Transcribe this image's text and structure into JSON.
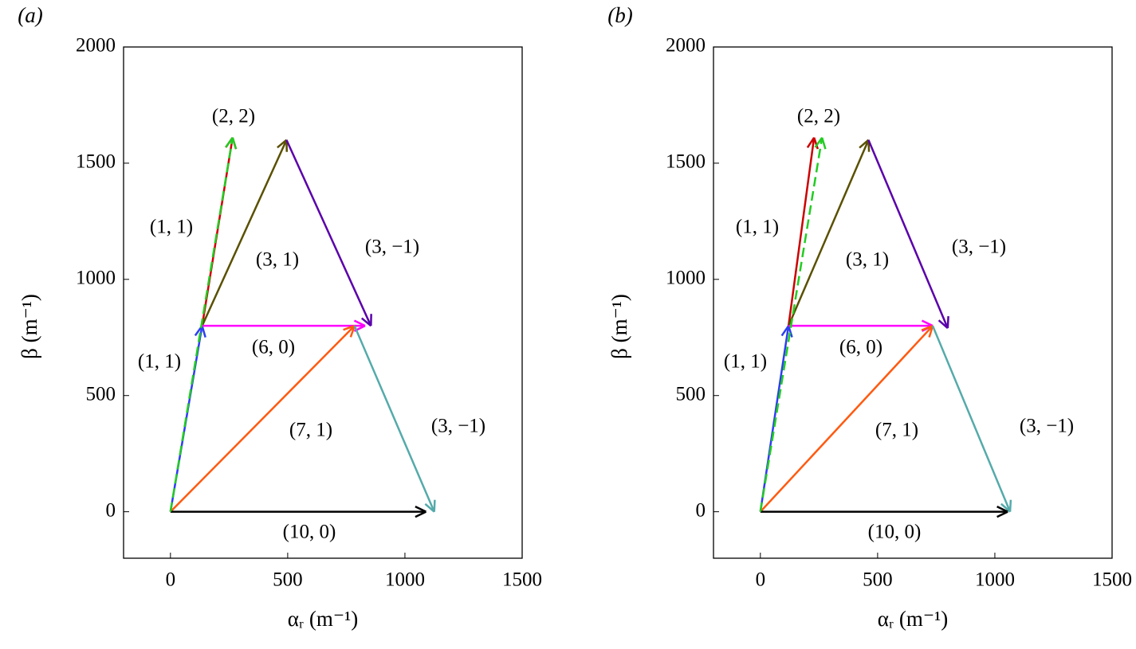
{
  "chart_data": [
    {
      "type": "vector",
      "panel_label": "(a)",
      "xlabel": "αᵣ (m⁻¹)",
      "ylabel": "β (m⁻¹)",
      "xlim": [
        -200,
        1500
      ],
      "ylim": [
        -200,
        2000
      ],
      "xticks": [
        0,
        500,
        1000,
        1500
      ],
      "yticks": [
        0,
        500,
        1000,
        1500,
        2000
      ],
      "series": [
        {
          "name": "(1, 1)",
          "color": "#2b3ff0",
          "start": [
            0,
            0
          ],
          "end": [
            135,
            800
          ],
          "dashed": false
        },
        {
          "name": "(1, 1)",
          "color": "#cc0000",
          "start": [
            135,
            800
          ],
          "end": [
            265,
            1610
          ],
          "dashed": false
        },
        {
          "name": "(3, 1)",
          "color": "#5a5000",
          "start": [
            135,
            800
          ],
          "end": [
            495,
            1600
          ],
          "dashed": false
        },
        {
          "name": "(3, −1)",
          "color": "#5a00aa",
          "start": [
            495,
            1600
          ],
          "end": [
            855,
            800
          ],
          "dashed": false
        },
        {
          "name": "(6, 0)",
          "color": "#ff00ff",
          "start": [
            135,
            800
          ],
          "end": [
            830,
            800
          ],
          "dashed": false
        },
        {
          "name": "(7, 1)",
          "color": "#ff5a10",
          "start": [
            0,
            0
          ],
          "end": [
            785,
            800
          ],
          "dashed": false
        },
        {
          "name": "(3, −1)",
          "color": "#55aaaa",
          "start": [
            785,
            800
          ],
          "end": [
            1125,
            0
          ],
          "dashed": false
        },
        {
          "name": "(10, 0)",
          "color": "#000000",
          "start": [
            0,
            0
          ],
          "end": [
            1090,
            0
          ],
          "dashed": false
        },
        {
          "name": "(2, 2)",
          "color": "#22cc22",
          "start": [
            0,
            0
          ],
          "end": [
            265,
            1610
          ],
          "dashed": true
        }
      ]
    },
    {
      "type": "vector",
      "panel_label": "(b)",
      "xlabel": "αᵣ (m⁻¹)",
      "ylabel": "β (m⁻¹)",
      "xlim": [
        -200,
        1500
      ],
      "ylim": [
        -200,
        2000
      ],
      "xticks": [
        0,
        500,
        1000,
        1500
      ],
      "yticks": [
        0,
        500,
        1000,
        1500,
        2000
      ],
      "series": [
        {
          "name": "(1, 1)",
          "color": "#2b3ff0",
          "start": [
            0,
            0
          ],
          "end": [
            120,
            800
          ],
          "dashed": false
        },
        {
          "name": "(1, 1)",
          "color": "#cc0000",
          "start": [
            120,
            800
          ],
          "end": [
            229,
            1610
          ],
          "dashed": false
        },
        {
          "name": "(3, 1)",
          "color": "#5a5000",
          "start": [
            120,
            800
          ],
          "end": [
            461,
            1600
          ],
          "dashed": false
        },
        {
          "name": "(3, −1)",
          "color": "#5a00aa",
          "start": [
            461,
            1600
          ],
          "end": [
            799,
            790
          ],
          "dashed": false
        },
        {
          "name": "(6, 0)",
          "color": "#ff00ff",
          "start": [
            120,
            800
          ],
          "end": [
            735,
            800
          ],
          "dashed": false
        },
        {
          "name": "(7, 1)",
          "color": "#ff5a10",
          "start": [
            0,
            0
          ],
          "end": [
            735,
            800
          ],
          "dashed": false
        },
        {
          "name": "(3, −1)",
          "color": "#55aaaa",
          "start": [
            735,
            800
          ],
          "end": [
            1065,
            0
          ],
          "dashed": false
        },
        {
          "name": "(10, 0)",
          "color": "#000000",
          "start": [
            0,
            0
          ],
          "end": [
            1055,
            0
          ],
          "dashed": false
        },
        {
          "name": "(2, 2)",
          "color": "#22cc22",
          "start": [
            0,
            0
          ],
          "end": [
            263,
            1610
          ],
          "dashed": true
        }
      ]
    }
  ]
}
